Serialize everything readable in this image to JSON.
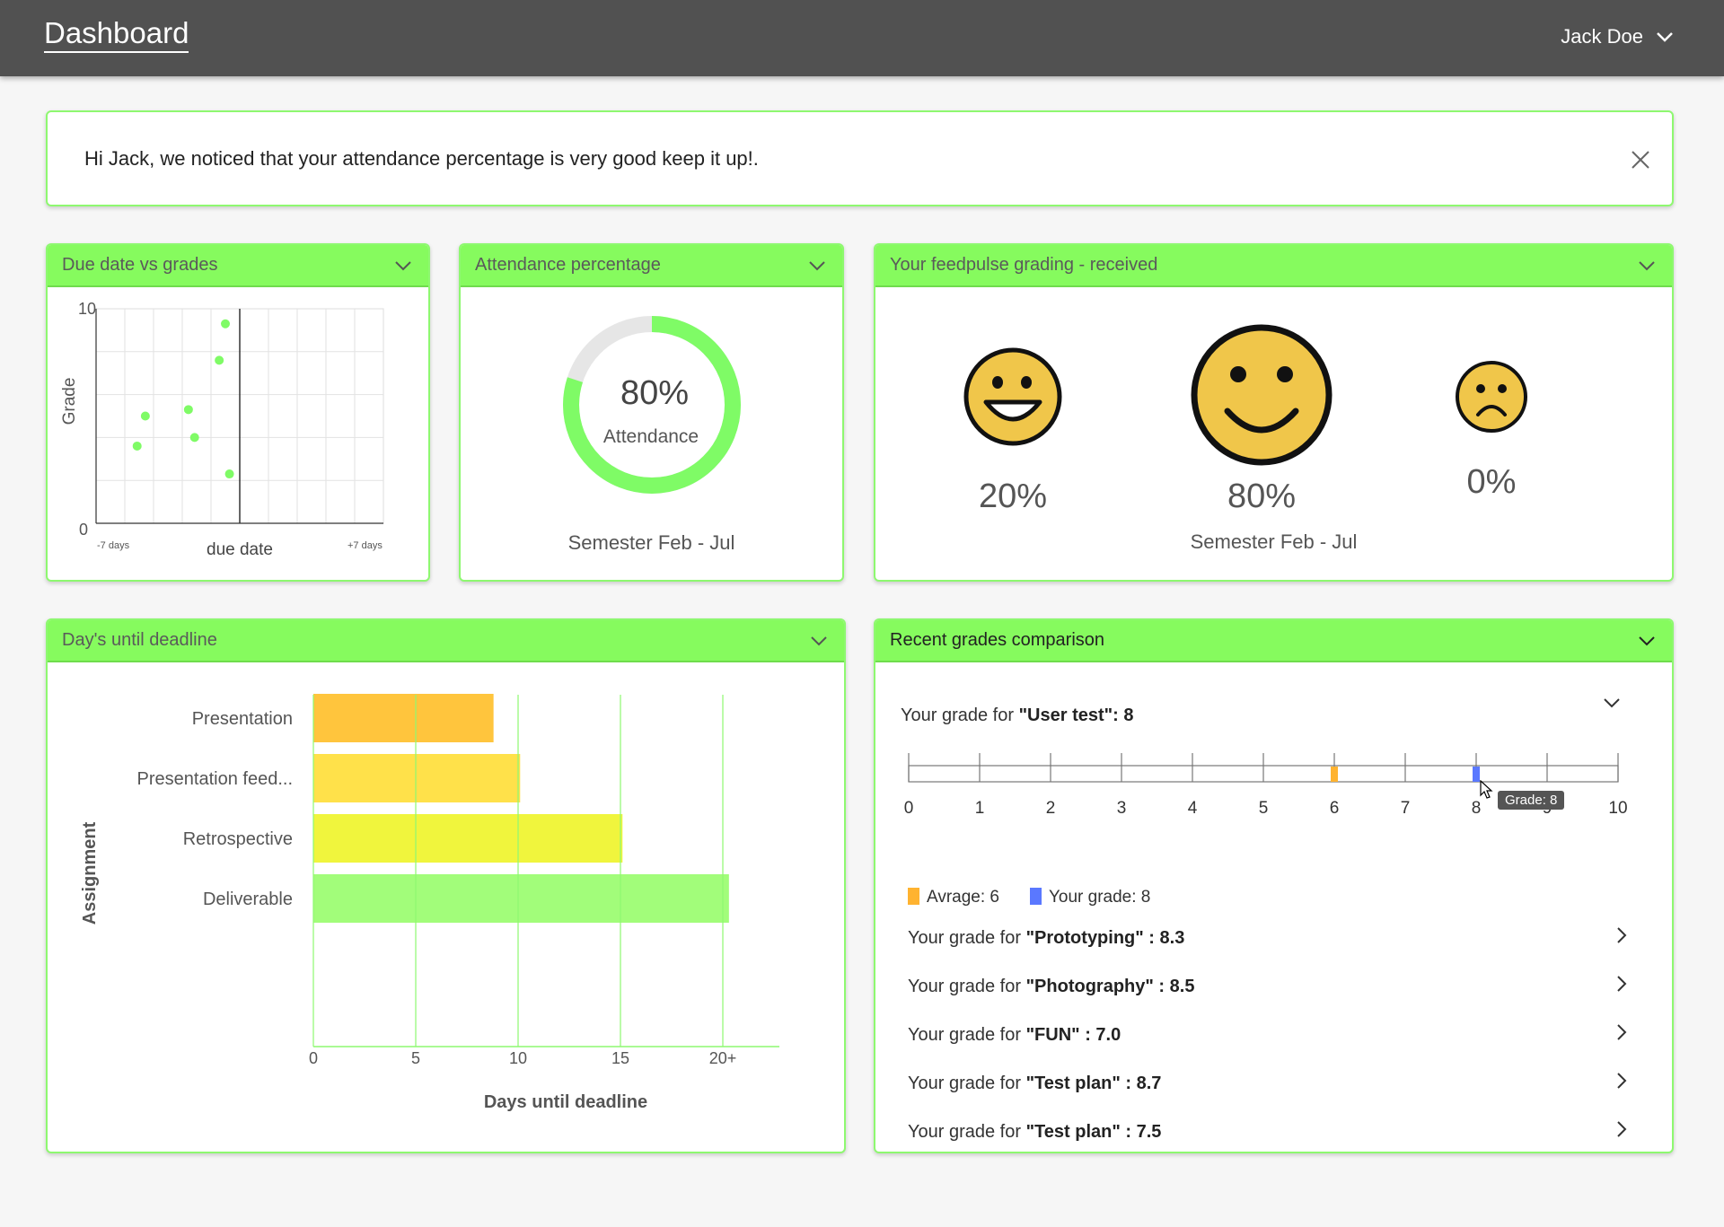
{
  "header": {
    "title": "Dashboard",
    "user_name": "Jack Doe"
  },
  "banner": {
    "message": "Hi Jack, we noticed that your attendance percentage is very good keep it up!."
  },
  "due_card": {
    "title": "Due date vs grades",
    "chart_data": {
      "type": "scatter",
      "xlabel": "due date",
      "ylabel": "Grade",
      "x_min_label": "-7 days",
      "x_max_label": "+7 days",
      "xlim": [
        -7,
        7
      ],
      "ylim": [
        0,
        10
      ],
      "y_ticks": [
        "10",
        "0"
      ],
      "points": [
        {
          "x": -5,
          "y": 3.6
        },
        {
          "x": -4.6,
          "y": 5.0
        },
        {
          "x": -2.5,
          "y": 5.3
        },
        {
          "x": -2.2,
          "y": 4.0
        },
        {
          "x": -1.0,
          "y": 7.6
        },
        {
          "x": -0.7,
          "y": 9.3
        },
        {
          "x": -0.5,
          "y": 2.3
        }
      ]
    }
  },
  "attendance_card": {
    "title": "Attendance percentage",
    "percent": 80,
    "value_label": "80%",
    "sub_label": "Attendance",
    "semester": "Semester Feb - Jul",
    "ring_color": "#7ffb66",
    "track_color": "#e6e6e6"
  },
  "feedpulse_card": {
    "title": "Your feedpulse grading - received",
    "items": [
      {
        "icon": "grinning-face-icon",
        "label": "20%"
      },
      {
        "icon": "smiling-face-icon",
        "label": "80%"
      },
      {
        "icon": "frowning-face-icon",
        "label": "0%"
      }
    ],
    "semester": "Semester Feb - Jul"
  },
  "deadline_card": {
    "title": "Day's until deadline",
    "chart_data": {
      "type": "bar",
      "orientation": "horizontal",
      "categories": [
        "Presentation",
        "Presentation feed...",
        "Retrospective",
        "Deliverable"
      ],
      "values": [
        8.8,
        10.1,
        15.1,
        20.3
      ],
      "colors": [
        "#ffc53d",
        "#ffe14a",
        "#f0f53d",
        "#a2fd7a"
      ],
      "x_ticks": [
        "0",
        "5",
        "10",
        "15",
        "20+"
      ],
      "x_tick_values": [
        0,
        5,
        10,
        15,
        20
      ],
      "xlim": [
        0,
        23
      ],
      "xlabel": "Days until deadline",
      "ylabel": "Assignment"
    }
  },
  "recent_card": {
    "title": "Recent grades comparison",
    "main": {
      "prefix": "Your grade for ",
      "name": "\"User test\":",
      "value": " 8"
    },
    "scale": {
      "ticks": [
        "0",
        "1",
        "2",
        "3",
        "4",
        "5",
        "6",
        "7",
        "8",
        "9",
        "10"
      ],
      "average": 6,
      "grade": 8,
      "average_color": "#ffb330",
      "grade_color": "#5a78ff"
    },
    "tooltip": "Grade: 8",
    "legend": {
      "average_label": "Avrage: 6",
      "grade_label": "Your grade: 8"
    },
    "rows": [
      {
        "prefix": "Your grade for ",
        "name": "\"Prototyping\" : 8.3"
      },
      {
        "prefix": "Your grade for ",
        "name": "\"Photography\" : 8.5"
      },
      {
        "prefix": "Your grade for ",
        "name": "\"FUN\" : 7.0"
      },
      {
        "prefix": "Your grade for ",
        "name": "\"Test plan\" : 8.7"
      },
      {
        "prefix": "Your grade for ",
        "name": "\"Test plan\" : 7.5"
      }
    ]
  }
}
